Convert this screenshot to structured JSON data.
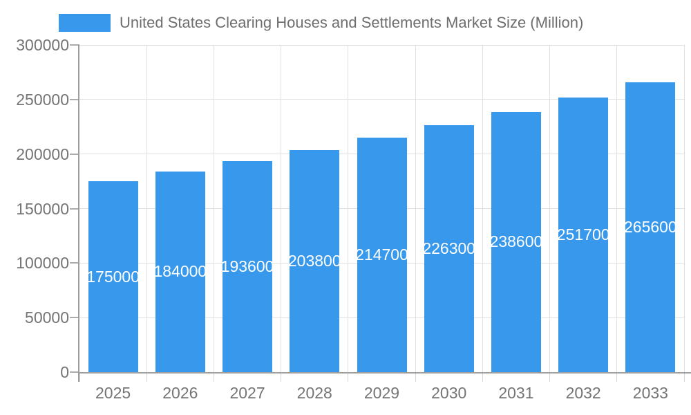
{
  "legend": {
    "label": "United States Clearing Houses and Settlements Market Size (Million)",
    "swatch_color": "#3898EC"
  },
  "chart_data": {
    "type": "bar",
    "title": "United States Clearing Houses and Settlements Market Size (Million)",
    "categories": [
      "2025",
      "2026",
      "2027",
      "2028",
      "2029",
      "2030",
      "2031",
      "2032",
      "2033"
    ],
    "values": [
      175000,
      184000,
      193600,
      203800,
      214700,
      226300,
      238600,
      251700,
      265600
    ],
    "value_labels": [
      "175000",
      "184000",
      "193600",
      "203800",
      "214700",
      "226300",
      "238600",
      "251700",
      "265600"
    ],
    "xlabel": "",
    "ylabel": "",
    "ylim": [
      0,
      300000
    ],
    "yticks": [
      0,
      50000,
      100000,
      150000,
      200000,
      250000,
      300000
    ],
    "grid": true,
    "legend_position": "top-left",
    "bar_color": "#3898EC",
    "value_label_color": "#FFFFFF",
    "grid_color": "#E0E0E0",
    "axis_color": "#9E9E9E",
    "tick_label_color": "#757575",
    "title_color": "#6E6E6E",
    "background_color": "#FFFFFF"
  }
}
